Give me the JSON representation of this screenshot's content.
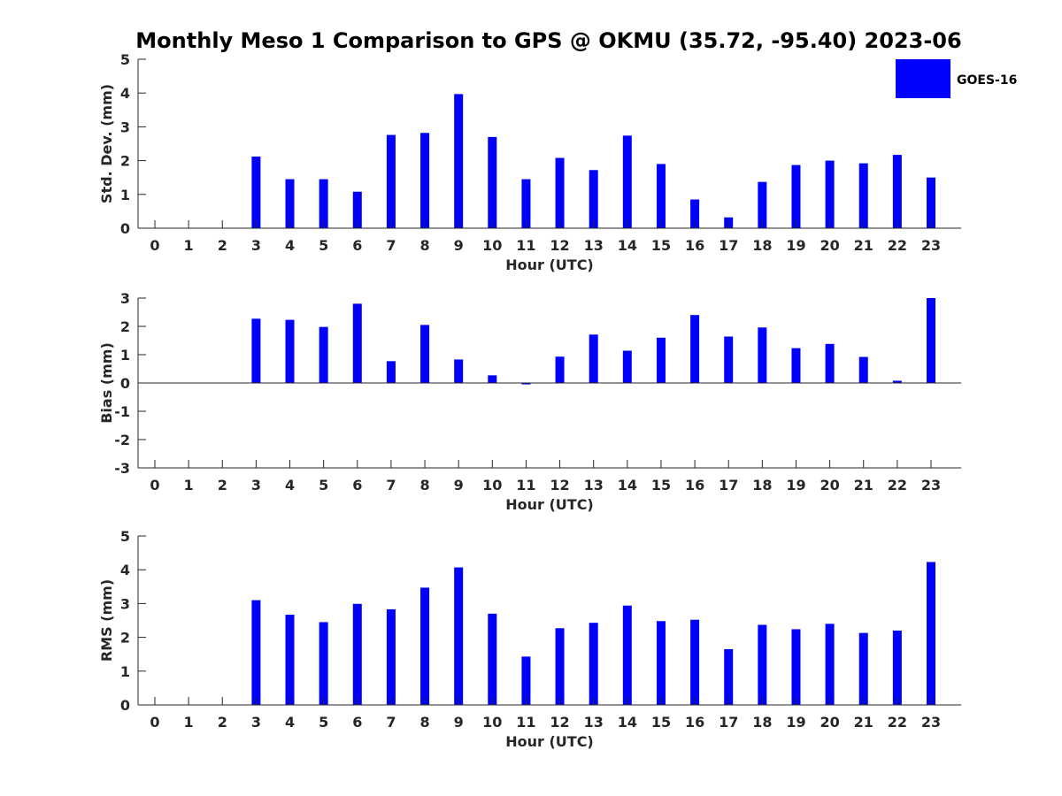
{
  "chart_data": {
    "title": "Monthly Meso 1 Comparison to GPS @ OKMU (35.72, -95.40) 2023-06",
    "legend": {
      "placement": "top-right",
      "entries": [
        {
          "label": "GOES-16",
          "color": "#0000ff"
        }
      ]
    },
    "bar_color": "#0000ff",
    "panels": [
      {
        "type": "bar",
        "ylabel": "Std. Dev. (mm)",
        "xlabel": "Hour (UTC)",
        "ylim": [
          0,
          5
        ],
        "yticks": [
          "0",
          "1",
          "2",
          "3",
          "4",
          "5"
        ],
        "categories": [
          "0",
          "1",
          "2",
          "3",
          "4",
          "5",
          "6",
          "7",
          "8",
          "9",
          "10",
          "11",
          "12",
          "13",
          "14",
          "15",
          "16",
          "17",
          "18",
          "19",
          "20",
          "21",
          "22",
          "23"
        ],
        "values": [
          null,
          null,
          null,
          2.12,
          1.45,
          1.45,
          1.08,
          2.76,
          2.82,
          3.97,
          2.7,
          1.45,
          2.08,
          1.72,
          2.74,
          1.9,
          0.85,
          0.32,
          1.37,
          1.87,
          2.0,
          1.92,
          2.17,
          1.5
        ],
        "grid": false
      },
      {
        "type": "bar",
        "ylabel": "Bias (mm)",
        "xlabel": "Hour (UTC)",
        "ylim": [
          -3,
          3
        ],
        "yticks": [
          "-3",
          "-2",
          "-1",
          "0",
          "1",
          "2",
          "3"
        ],
        "categories": [
          "0",
          "1",
          "2",
          "3",
          "4",
          "5",
          "6",
          "7",
          "8",
          "9",
          "10",
          "11",
          "12",
          "13",
          "14",
          "15",
          "16",
          "17",
          "18",
          "19",
          "20",
          "21",
          "22",
          "23"
        ],
        "values": [
          null,
          null,
          null,
          2.27,
          2.23,
          1.98,
          2.8,
          0.77,
          2.05,
          0.83,
          0.27,
          -0.05,
          0.93,
          1.71,
          1.14,
          1.6,
          2.4,
          1.64,
          1.96,
          1.23,
          1.38,
          0.92,
          0.08,
          3.0
        ],
        "grid": false
      },
      {
        "type": "bar",
        "ylabel": "RMS (mm)",
        "xlabel": "Hour (UTC)",
        "ylim": [
          0,
          5
        ],
        "yticks": [
          "0",
          "1",
          "2",
          "3",
          "4",
          "5"
        ],
        "categories": [
          "0",
          "1",
          "2",
          "3",
          "4",
          "5",
          "6",
          "7",
          "8",
          "9",
          "10",
          "11",
          "12",
          "13",
          "14",
          "15",
          "16",
          "17",
          "18",
          "19",
          "20",
          "21",
          "22",
          "23"
        ],
        "values": [
          null,
          null,
          null,
          3.1,
          2.67,
          2.45,
          2.99,
          2.83,
          3.47,
          4.07,
          2.7,
          1.43,
          2.27,
          2.43,
          2.94,
          2.48,
          2.52,
          1.65,
          2.37,
          2.24,
          2.4,
          2.13,
          2.2,
          4.23
        ],
        "grid": false
      }
    ]
  }
}
